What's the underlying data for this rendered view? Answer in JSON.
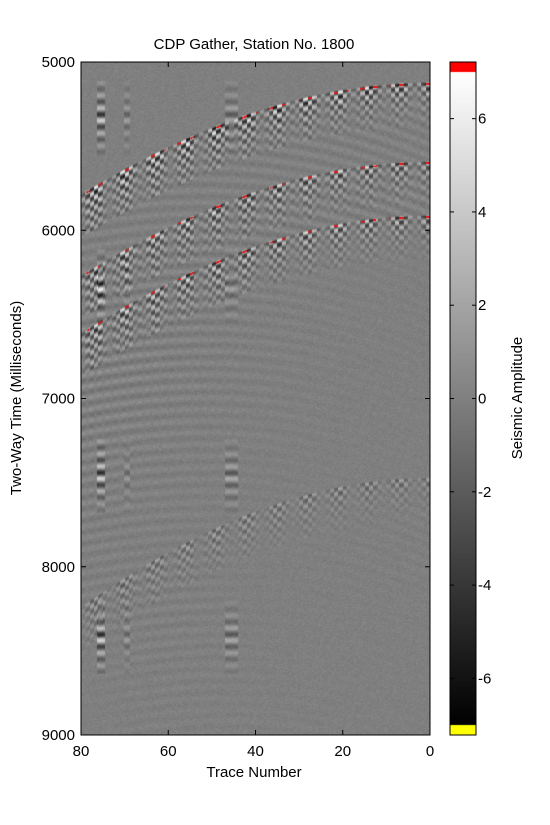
{
  "chart_data": {
    "type": "heatmap",
    "title": "CDP Gather, Station No. 1800",
    "xlabel": "Trace Number",
    "ylabel": "Two-Way Time (Milliseconds)",
    "xlim": [
      80,
      0
    ],
    "ylim": [
      5000,
      9000
    ],
    "x_reversed": true,
    "y_reversed": true,
    "xticks": [
      "80",
      "60",
      "40",
      "20",
      "0"
    ],
    "yticks": [
      "5000",
      "6000",
      "7000",
      "8000",
      "9000"
    ],
    "colorbar": {
      "label": "Seismic Amplitude",
      "clim": [
        -7,
        7
      ],
      "ticks": [
        "6",
        "4",
        "2",
        "0",
        "-2",
        "-4",
        "-6"
      ],
      "colormap": "gray with red top and yellow bottom",
      "top_color": "#ff0000",
      "bottom_color": "#ffff00"
    },
    "events": [
      {
        "t0_ms": 5130,
        "velocity": 2970,
        "strength": 1.0
      },
      {
        "t0_ms": 5600,
        "velocity": 2820,
        "strength": 0.8
      },
      {
        "t0_ms": 5920,
        "velocity": 2700,
        "strength": 0.8
      },
      {
        "t0_ms": 7480,
        "velocity": 2300,
        "strength": 0.35
      }
    ]
  }
}
